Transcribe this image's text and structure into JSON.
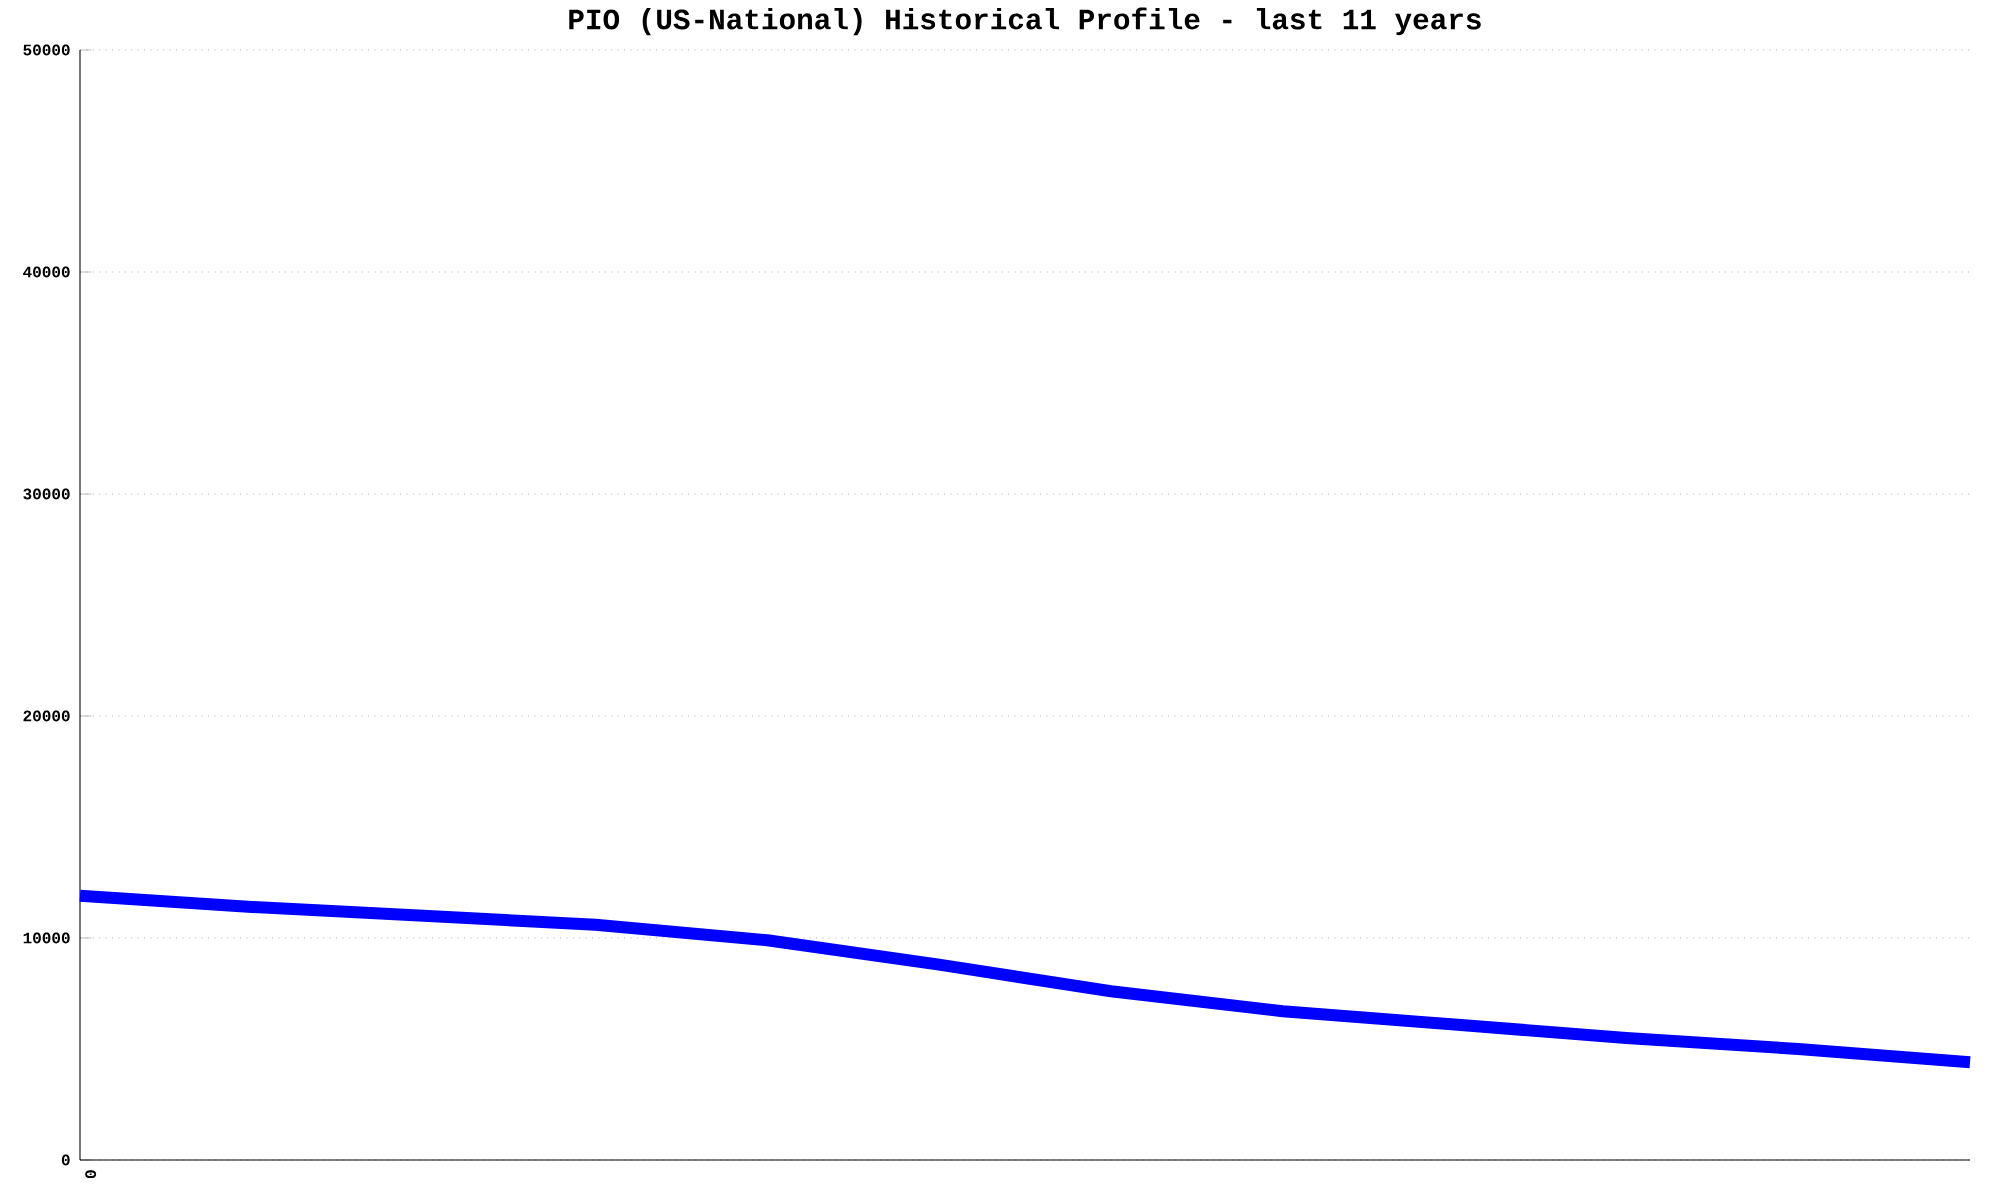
{
  "chart_data": {
    "type": "line",
    "title": "PIO (US-National) Historical Profile - last 11 years",
    "categories": [
      null,
      null,
      null,
      null,
      null,
      null,
      null,
      null,
      null,
      null,
      null,
      null
    ],
    "series": [
      {
        "color": "#0000ff",
        "values": [
          11900,
          11400,
          11000,
          10600,
          9900,
          8800,
          7600,
          6700,
          6100,
          5500,
          5000,
          4400
        ]
      }
    ],
    "ylim": [
      0,
      50000
    ],
    "yticks": [
      0,
      10000,
      20000,
      30000,
      40000,
      50000
    ],
    "grid": "y",
    "marker": "none",
    "line_style": "solid",
    "annotations": [
      "0"
    ]
  }
}
